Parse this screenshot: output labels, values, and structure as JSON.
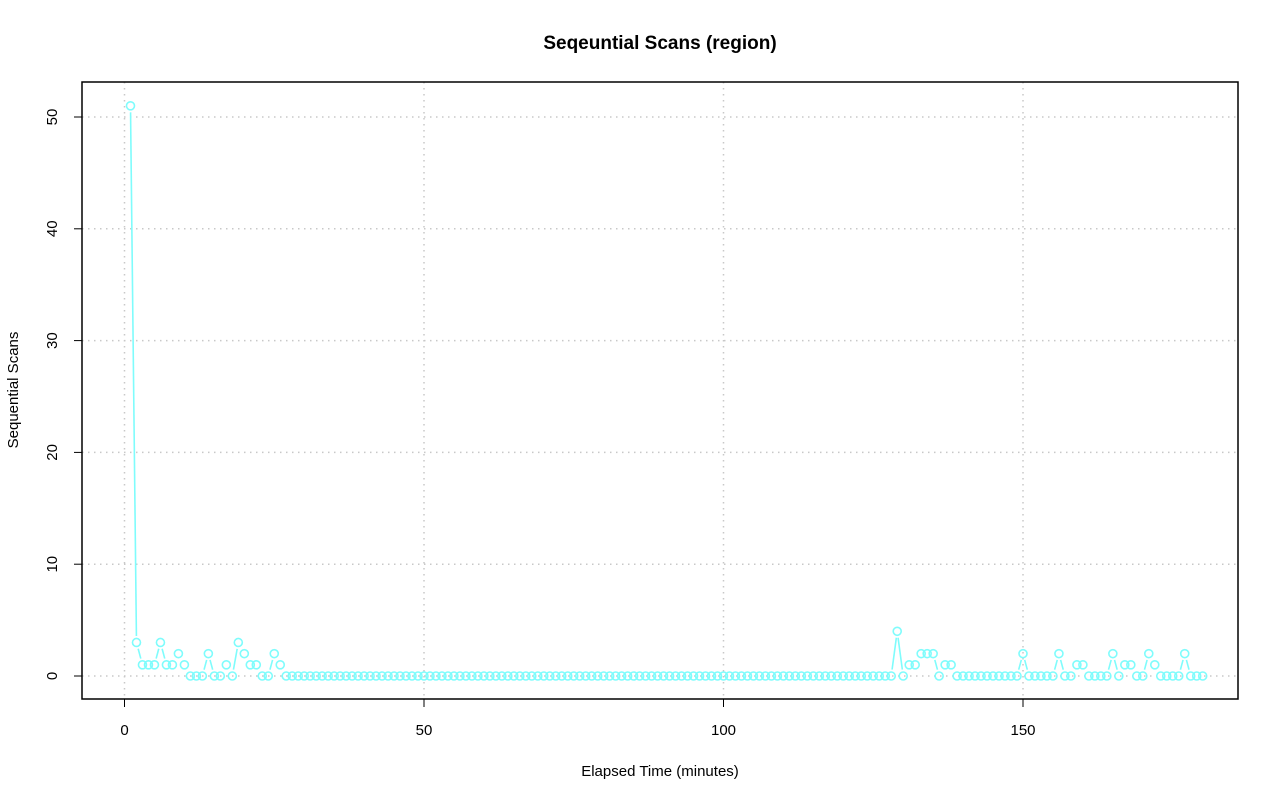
{
  "chart_data": {
    "type": "line",
    "title": "Seqeuntial Scans (region)",
    "xlabel": "Elapsed Time (minutes)",
    "ylabel": "Sequential Scans",
    "xlim": [
      0,
      180
    ],
    "ylim": [
      0,
      51
    ],
    "x_ticks": [
      0,
      50,
      100,
      150
    ],
    "y_ticks": [
      0,
      10,
      20,
      30,
      40,
      50
    ],
    "grid": true,
    "markers": "open-circle",
    "colors": {
      "series": "#7ffcfc",
      "axis": "#000000",
      "grid": "#c8c8c8"
    },
    "series": [
      {
        "values": [
          51,
          3,
          1,
          1,
          1,
          3,
          1,
          1,
          2,
          1,
          0,
          0,
          0,
          2,
          0,
          0,
          1,
          0,
          3,
          2,
          1,
          1,
          0,
          0,
          2,
          1,
          0,
          0,
          0,
          0,
          0,
          0,
          0,
          0,
          0,
          0,
          0,
          0,
          0,
          0,
          0,
          0,
          0,
          0,
          0,
          0,
          0,
          0,
          0,
          0,
          0,
          0,
          0,
          0,
          0,
          0,
          0,
          0,
          0,
          0,
          0,
          0,
          0,
          0,
          0,
          0,
          0,
          0,
          0,
          0,
          0,
          0,
          0,
          0,
          0,
          0,
          0,
          0,
          0,
          0,
          0,
          0,
          0,
          0,
          0,
          0,
          0,
          0,
          0,
          0,
          0,
          0,
          0,
          0,
          0,
          0,
          0,
          0,
          0,
          0,
          0,
          0,
          0,
          0,
          0,
          0,
          0,
          0,
          0,
          0,
          0,
          0,
          0,
          0,
          0,
          0,
          0,
          0,
          0,
          0,
          0,
          0,
          0,
          0,
          0,
          0,
          0,
          0,
          4,
          0,
          1,
          1,
          2,
          2,
          2,
          0,
          1,
          1,
          0,
          0,
          0,
          0,
          0,
          0,
          0,
          0,
          0,
          0,
          0,
          2,
          0,
          0,
          0,
          0,
          0,
          2,
          0,
          0,
          1,
          1,
          0,
          0,
          0,
          0,
          2,
          0,
          1,
          1,
          0,
          0,
          2,
          1,
          0,
          0,
          0,
          0,
          2,
          0,
          0,
          0
        ]
      }
    ]
  }
}
